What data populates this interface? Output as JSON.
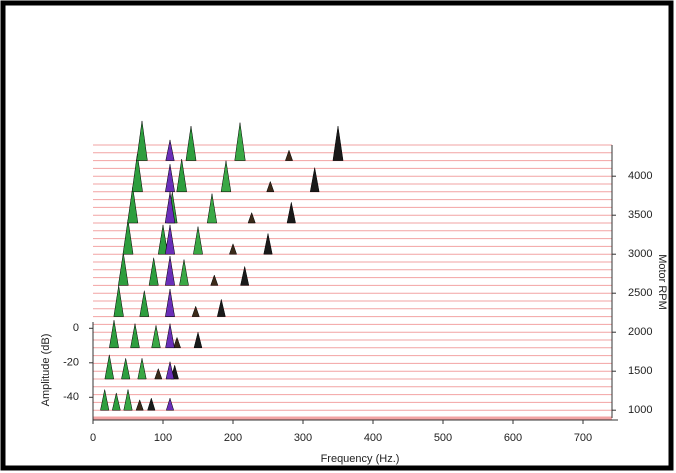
{
  "chart_data": {
    "type": "waterfall",
    "xlabel": "Frequency (Hz.)",
    "ylabel": "Amplitude (dB)",
    "y2label": "Motor RPM",
    "xlim": [
      0,
      750
    ],
    "xticks": [
      0,
      100,
      200,
      300,
      400,
      500,
      600,
      700
    ],
    "ylim": [
      -52,
      5
    ],
    "yticks": [
      0,
      -20,
      -40
    ],
    "y2lim": [
      900,
      4400
    ],
    "y2ticks": [
      1000,
      1500,
      2000,
      2500,
      3000,
      3500,
      4000
    ],
    "slice_color": "#f2a3a3",
    "slices": [
      900,
      1000,
      1100,
      1200,
      1300,
      1400,
      1500,
      1600,
      1700,
      1800,
      1900,
      2000,
      2100,
      2200,
      2300,
      2400,
      2500,
      2600,
      2700,
      2800,
      2900,
      3000,
      3100,
      3200,
      3300,
      3400,
      3500,
      3600,
      3700,
      3800,
      3900,
      4000,
      4100,
      4200,
      4300,
      4400
    ],
    "series": [
      {
        "color": "#2e9e3e",
        "rpm": [
          1000,
          1400,
          1800,
          2200,
          2600,
          3000,
          3400,
          3800,
          4200
        ],
        "x": [
          16.7,
          23.3,
          30,
          36.7,
          43.3,
          50,
          56.7,
          63.3,
          70
        ],
        "values": [
          -40,
          -38,
          -36,
          -34,
          -33,
          -32,
          -31,
          -30,
          -29
        ]
      },
      {
        "color": "#2e9e3e",
        "rpm": [
          1000,
          1400,
          1800,
          2200,
          2600,
          3000,
          3400,
          3800,
          4200
        ],
        "x": [
          33.3,
          46.7,
          60,
          73.3,
          86.7,
          100,
          113.3,
          126.7,
          140
        ],
        "values": [
          -42,
          -40,
          -38,
          -37,
          -36,
          -35,
          -34,
          -33,
          -32
        ]
      },
      {
        "color": "#3aa845",
        "rpm": [
          1000,
          1400,
          1800,
          2200,
          2600,
          3000,
          3400,
          3800,
          4200
        ],
        "x": [
          50,
          70,
          90,
          110,
          130,
          150,
          170,
          190,
          210
        ],
        "values": [
          -40,
          -40,
          -39,
          -38,
          -37,
          -36,
          -35,
          -34,
          -30
        ]
      },
      {
        "color": "#3b2a1a",
        "rpm": [
          1000,
          1400,
          1800,
          2200,
          2600,
          3000,
          3400,
          3800,
          4200
        ],
        "x": [
          66.7,
          93.3,
          120,
          146.7,
          173.3,
          200,
          226.7,
          253.3,
          280
        ],
        "values": [
          -46,
          -46,
          -46,
          -46,
          -46,
          -46,
          -46,
          -46,
          -46
        ]
      },
      {
        "color": "#1a1a1a",
        "rpm": [
          1000,
          1400,
          1800,
          2200,
          2600,
          3000,
          3400,
          3800,
          4200
        ],
        "x": [
          83.3,
          116.7,
          150,
          183.3,
          216.7,
          250,
          283.3,
          316.7,
          350
        ],
        "values": [
          -45,
          -44,
          -43,
          -42,
          -41,
          -40,
          -40,
          -38,
          -32
        ]
      },
      {
        "color": "#6a2fb8",
        "rpm": [
          1000,
          1400,
          1800,
          2200,
          2600,
          3000,
          3400,
          3800,
          4200
        ],
        "x": [
          110,
          110,
          110,
          110,
          110,
          110,
          110,
          110,
          110
        ],
        "values": [
          -45,
          -42,
          -38,
          -36,
          -35,
          -35,
          -34,
          -36,
          -40
        ]
      }
    ]
  }
}
